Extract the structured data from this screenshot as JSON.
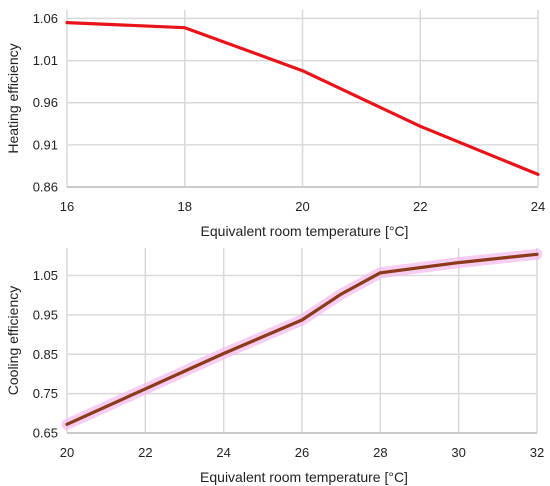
{
  "chart_data": [
    {
      "type": "line",
      "xlabel": "Equivalent room temperature [°C]",
      "ylabel": "Heating efficiency",
      "xlim": [
        16,
        24
      ],
      "ylim": [
        0.86,
        1.07
      ],
      "xticks": [
        "16",
        "18",
        "20",
        "22",
        "24"
      ],
      "yticks": [
        "0.86",
        "0.91",
        "0.96",
        "1.01",
        "1.06"
      ],
      "grid": true,
      "series": [
        {
          "x": [
            16,
            18,
            20,
            22,
            24
          ],
          "y": [
            1.055,
            1.049,
            0.998,
            0.932,
            0.875
          ],
          "color": "#e8141a"
        }
      ]
    },
    {
      "type": "line",
      "xlabel": "Equivalent room temperature [°C]",
      "ylabel": "Cooling efficiency",
      "xlim": [
        20,
        32
      ],
      "ylim": [
        0.65,
        1.12
      ],
      "xticks": [
        "20",
        "22",
        "24",
        "26",
        "28",
        "30",
        "32"
      ],
      "yticks": [
        "0.65",
        "0.75",
        "0.85",
        "0.95",
        "1.05"
      ],
      "grid": true,
      "series": [
        {
          "x": [
            20,
            22,
            24,
            26,
            27,
            28,
            30,
            32
          ],
          "y": [
            0.672,
            0.762,
            0.852,
            0.937,
            1.003,
            1.057,
            1.083,
            1.104
          ],
          "color": "#8b3a1a",
          "highlight_color": "#f4b8ec"
        }
      ]
    }
  ]
}
